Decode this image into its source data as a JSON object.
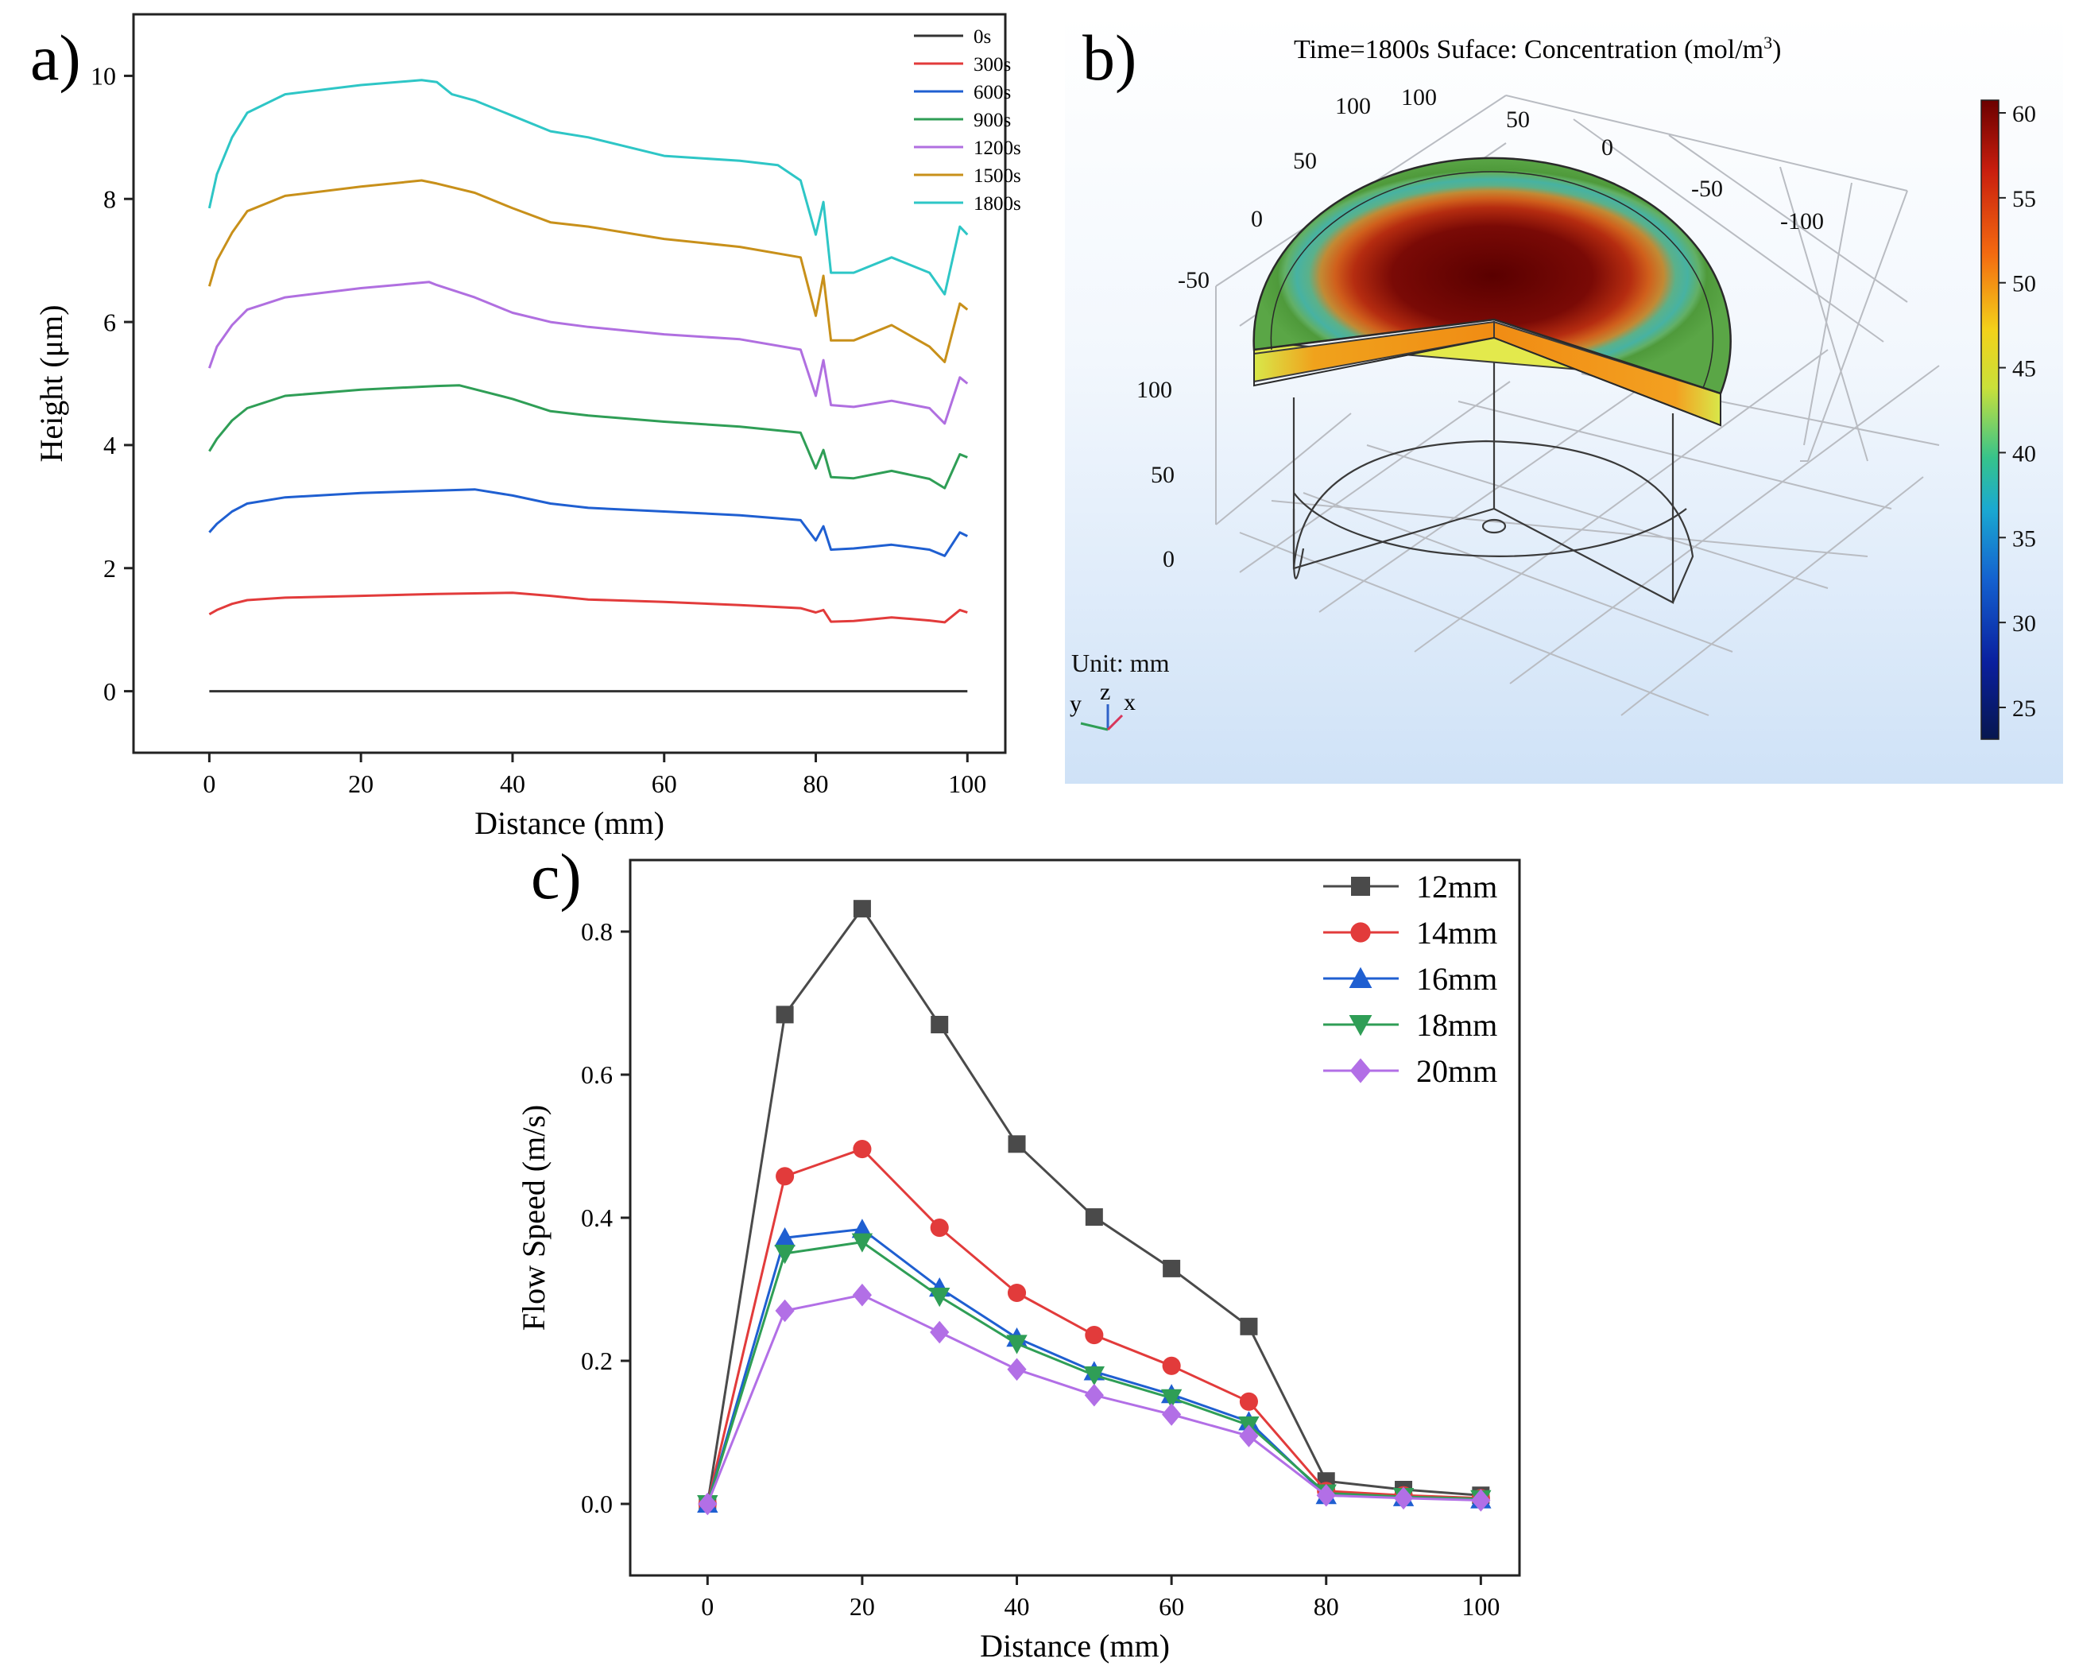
{
  "figure": {
    "panels": [
      {
        "id": "a",
        "label": "a)",
        "chart_data": {
          "type": "line",
          "xlabel": "Distance (mm)",
          "ylabel": "Height (μm)",
          "xlim": [
            -10,
            105
          ],
          "ylim": [
            -1,
            11
          ],
          "xticks": [
            0,
            20,
            40,
            60,
            80,
            100
          ],
          "yticks": [
            0,
            2,
            4,
            6,
            8,
            10
          ],
          "legend_position": "top-right",
          "series": [
            {
              "name": "0s",
              "color": "#333333",
              "x": [
                0,
                100
              ],
              "y": [
                0,
                0
              ]
            },
            {
              "name": "300s",
              "color": "#e23b3b",
              "x": [
                0,
                1,
                3,
                5,
                10,
                20,
                30,
                35,
                40,
                45,
                50,
                60,
                70,
                78,
                80,
                81,
                82,
                85,
                90,
                95,
                97,
                99,
                100
              ],
              "y": [
                1.25,
                1.32,
                1.42,
                1.48,
                1.52,
                1.55,
                1.58,
                1.59,
                1.6,
                1.55,
                1.49,
                1.45,
                1.4,
                1.35,
                1.28,
                1.32,
                1.13,
                1.14,
                1.2,
                1.15,
                1.12,
                1.32,
                1.28
              ]
            },
            {
              "name": "600s",
              "color": "#1f5fd1",
              "x": [
                0,
                1,
                3,
                5,
                10,
                20,
                30,
                35,
                40,
                45,
                50,
                60,
                70,
                78,
                80,
                81,
                82,
                85,
                90,
                95,
                97,
                99,
                100
              ],
              "y": [
                2.58,
                2.72,
                2.92,
                3.05,
                3.15,
                3.22,
                3.26,
                3.28,
                3.18,
                3.05,
                2.98,
                2.92,
                2.86,
                2.78,
                2.45,
                2.68,
                2.3,
                2.32,
                2.38,
                2.3,
                2.2,
                2.58,
                2.52
              ]
            },
            {
              "name": "900s",
              "color": "#2f9e56",
              "x": [
                0,
                1,
                3,
                5,
                10,
                20,
                30,
                33,
                40,
                45,
                50,
                60,
                70,
                78,
                80,
                81,
                82,
                85,
                90,
                95,
                97,
                99,
                100
              ],
              "y": [
                3.9,
                4.1,
                4.4,
                4.6,
                4.8,
                4.9,
                4.96,
                4.97,
                4.75,
                4.55,
                4.48,
                4.38,
                4.3,
                4.2,
                3.62,
                3.92,
                3.48,
                3.46,
                3.58,
                3.45,
                3.3,
                3.85,
                3.8
              ]
            },
            {
              "name": "1200s",
              "color": "#b06fe0",
              "x": [
                0,
                1,
                3,
                5,
                10,
                20,
                29,
                30,
                35,
                40,
                45,
                50,
                60,
                70,
                78,
                80,
                81,
                82,
                85,
                90,
                95,
                97,
                99,
                100
              ],
              "y": [
                5.25,
                5.6,
                5.95,
                6.2,
                6.4,
                6.55,
                6.65,
                6.6,
                6.4,
                6.15,
                6.0,
                5.92,
                5.8,
                5.72,
                5.55,
                4.8,
                5.38,
                4.65,
                4.62,
                4.72,
                4.6,
                4.35,
                5.1,
                5.0
              ]
            },
            {
              "name": "1500s",
              "color": "#c8901a",
              "x": [
                0,
                1,
                3,
                5,
                10,
                20,
                28,
                30,
                35,
                40,
                45,
                50,
                60,
                70,
                78,
                80,
                81,
                82,
                85,
                90,
                95,
                97,
                99,
                100
              ],
              "y": [
                6.58,
                7.0,
                7.45,
                7.8,
                8.05,
                8.2,
                8.3,
                8.25,
                8.1,
                7.85,
                7.62,
                7.55,
                7.35,
                7.22,
                7.05,
                6.1,
                6.75,
                5.7,
                5.7,
                5.95,
                5.6,
                5.35,
                6.3,
                6.2
              ]
            },
            {
              "name": "1800s",
              "color": "#2ec6c6",
              "x": [
                0,
                1,
                3,
                5,
                10,
                20,
                28,
                30,
                32,
                35,
                40,
                45,
                50,
                60,
                70,
                75,
                78,
                80,
                81,
                82,
                85,
                90,
                95,
                97,
                99,
                100
              ],
              "y": [
                7.85,
                8.4,
                9.0,
                9.4,
                9.7,
                9.85,
                9.93,
                9.9,
                9.7,
                9.6,
                9.35,
                9.1,
                9.0,
                8.7,
                8.62,
                8.55,
                8.3,
                7.42,
                7.95,
                6.8,
                6.8,
                7.05,
                6.8,
                6.45,
                7.55,
                7.42
              ]
            }
          ]
        }
      },
      {
        "id": "b",
        "label": "b)",
        "title_prefix": "Time=1800s Suface: Concentration (mol/m",
        "title_sup": "3",
        "title_suffix": ")",
        "unit_text": "Unit: mm",
        "axes_letters": {
          "y": "y",
          "z": "z",
          "x": "x"
        },
        "axis_ticks_back_left": [
          "100",
          "50",
          "0",
          "-50"
        ],
        "axis_ticks_back_right": [
          "100",
          "50",
          "0",
          "-50",
          "-100"
        ],
        "axis_ticks_vertical": [
          "100",
          "50",
          "0"
        ],
        "colorbar": {
          "ticks": [
            "60",
            "55",
            "50",
            "45",
            "40",
            "35",
            "30",
            "25"
          ],
          "colors": [
            "#6b0000",
            "#c81e0e",
            "#f36a10",
            "#f3d21a",
            "#c9e03a",
            "#36c38b",
            "#1aa9d1",
            "#1461cf",
            "#0a1f9e",
            "#07174f"
          ]
        }
      },
      {
        "id": "c",
        "label": "c)",
        "chart_data": {
          "type": "line",
          "xlabel": "Distance (mm)",
          "ylabel": "Flow Speed (m/s)",
          "xlim": [
            -10,
            105
          ],
          "ylim": [
            -0.1,
            0.9
          ],
          "xticks": [
            0,
            20,
            40,
            60,
            80,
            100
          ],
          "yticks": [
            0.0,
            0.2,
            0.4,
            0.6,
            0.8
          ],
          "ytick_labels": [
            "0.0",
            "0.2",
            "0.4",
            "0.6",
            "0.8"
          ],
          "legend_position": "top-right",
          "x": [
            0,
            10,
            20,
            30,
            40,
            50,
            60,
            70,
            80,
            90,
            100
          ],
          "series": [
            {
              "name": "12mm",
              "color": "#4a4a4a",
              "marker": "square",
              "values": [
                0.0,
                0.684,
                0.832,
                0.67,
                0.503,
                0.401,
                0.329,
                0.248,
                0.032,
                0.02,
                0.012
              ]
            },
            {
              "name": "14mm",
              "color": "#e23b3b",
              "marker": "circle",
              "values": [
                0.0,
                0.458,
                0.496,
                0.386,
                0.295,
                0.236,
                0.193,
                0.143,
                0.018,
                0.012,
                0.008
              ]
            },
            {
              "name": "16mm",
              "color": "#1f5fd1",
              "marker": "triangle-up",
              "values": [
                0.0,
                0.372,
                0.384,
                0.302,
                0.232,
                0.185,
                0.153,
                0.115,
                0.012,
                0.009,
                0.006
              ]
            },
            {
              "name": "18mm",
              "color": "#2f9e56",
              "marker": "triangle-down",
              "values": [
                0.0,
                0.35,
                0.366,
                0.29,
                0.224,
                0.18,
                0.148,
                0.11,
                0.015,
                0.01,
                0.007
              ]
            },
            {
              "name": "20mm",
              "color": "#b26fe6",
              "marker": "diamond",
              "values": [
                0.0,
                0.27,
                0.292,
                0.24,
                0.188,
                0.152,
                0.125,
                0.095,
                0.012,
                0.008,
                0.005
              ]
            }
          ]
        }
      }
    ]
  }
}
